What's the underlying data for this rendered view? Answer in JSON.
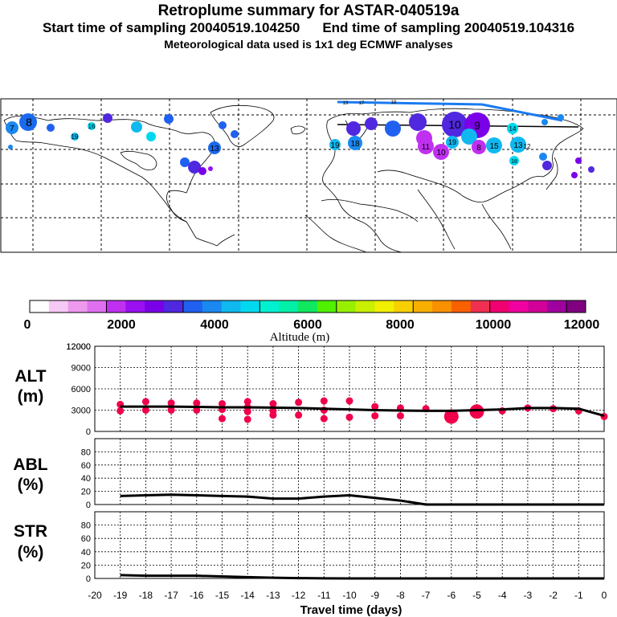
{
  "header": {
    "title": "Retroplume summary for ASTAR-040519a",
    "start_label": "Start time of sampling 20040519.104250",
    "end_label": "End time of sampling 20040519.104316",
    "subtitle": "Meteorological data used is 1x1 deg ECMWF analyses"
  },
  "map": {
    "cluster_labels": [
      "7",
      "8",
      "19",
      "16",
      "13",
      "15",
      "14",
      "12",
      "17",
      "18",
      "9",
      "10",
      "11"
    ]
  },
  "colorbar": {
    "label": "Altitude (m)",
    "ticks": [
      "0",
      "2000",
      "4000",
      "6000",
      "8000",
      "10000",
      "12000"
    ],
    "colors": [
      "#ffffff",
      "#f5c8f5",
      "#ee98ee",
      "#e070f0",
      "#c030f0",
      "#9a10f0",
      "#7a00e8",
      "#5028e0",
      "#2060f0",
      "#1a88f0",
      "#10b8f0",
      "#00d8f0",
      "#00f0d0",
      "#00f0a8",
      "#10e860",
      "#50f000",
      "#98f000",
      "#c8f000",
      "#f0f000",
      "#f8d000",
      "#f8b000",
      "#f89000",
      "#f86000",
      "#f03050",
      "#f00070",
      "#f000a0",
      "#d00098",
      "#a000a0",
      "#800080"
    ]
  },
  "chart_data": [
    {
      "type": "line",
      "name": "ALT",
      "ylabel": "ALT",
      "yunit": "(m)",
      "ylim": [
        0,
        12000
      ],
      "yticks": [
        "0",
        "3000",
        "6000",
        "9000",
        "12000"
      ],
      "x": [
        -19,
        -18,
        -17,
        -16,
        -15,
        -14,
        -13,
        -12,
        -11,
        -10,
        -9,
        -8,
        -7,
        -6,
        -5,
        -4,
        -3,
        -2,
        -1,
        0
      ],
      "values": [
        3500,
        3500,
        3500,
        3450,
        3400,
        3400,
        3350,
        3300,
        3200,
        3100,
        3000,
        2950,
        2900,
        2900,
        3000,
        3100,
        3300,
        3300,
        3200,
        2200
      ],
      "clusters": {
        "x": [
          -19,
          -19,
          -18,
          -18,
          -17,
          -17,
          -16,
          -16,
          -15,
          -15,
          -15,
          -14,
          -14,
          -14,
          -14,
          -13,
          -13,
          -13,
          -12,
          -12,
          -11,
          -11,
          -11,
          -10,
          -10,
          -9,
          -9,
          -8,
          -8,
          -7,
          -6,
          -5,
          -4,
          -3,
          -2,
          -1,
          0
        ],
        "y": [
          3800,
          2900,
          4200,
          3000,
          4000,
          3000,
          4000,
          3000,
          3900,
          3100,
          1800,
          4200,
          3400,
          2800,
          1700,
          3900,
          2900,
          2300,
          4100,
          2300,
          4300,
          3000,
          1800,
          4300,
          2000,
          3500,
          2200,
          3300,
          2200,
          3200,
          2100,
          2800,
          2900,
          3300,
          3200,
          2900,
          2100
        ]
      },
      "line_color": "#000000",
      "marker_color": "#f0004a"
    },
    {
      "type": "line",
      "name": "ABL",
      "ylabel": "ABL",
      "yunit": "(%)",
      "ylim": [
        0,
        100
      ],
      "yticks": [
        "0",
        "20",
        "40",
        "60",
        "80"
      ],
      "x": [
        -19,
        -18,
        -17,
        -16,
        -15,
        -14,
        -13,
        -12,
        -11,
        -10,
        -9,
        -8,
        -7,
        -6,
        -5,
        -4,
        -3,
        -2,
        -1,
        0
      ],
      "values": [
        13,
        14,
        15,
        14,
        13,
        12,
        9,
        9,
        12,
        14,
        10,
        6,
        0,
        0,
        0,
        0,
        0,
        0,
        0,
        0
      ]
    },
    {
      "type": "line",
      "name": "STR",
      "ylabel": "STR",
      "yunit": "(%)",
      "ylim": [
        0,
        100
      ],
      "yticks": [
        "0",
        "20",
        "40",
        "60",
        "80"
      ],
      "x": [
        -19,
        -18,
        -17,
        -16,
        -15,
        -14,
        -13,
        -12,
        -11,
        -10,
        -9,
        -8,
        -7,
        -6,
        -5,
        -4,
        -3,
        -2,
        -1,
        0
      ],
      "values": [
        5,
        4,
        4,
        4,
        3,
        2,
        1,
        0.5,
        0.2,
        0,
        0,
        0,
        0,
        0,
        0,
        0,
        0,
        0,
        0,
        0
      ]
    }
  ],
  "xaxis": {
    "label": "Travel time (days)",
    "ticks": [
      "-20",
      "-19",
      "-18",
      "-17",
      "-16",
      "-15",
      "-14",
      "-13",
      "-12",
      "-11",
      "-10",
      "-9",
      "-8",
      "-7",
      "-6",
      "-5",
      "-4",
      "-3",
      "-2",
      "-1",
      "0"
    ],
    "xlim": [
      -20,
      0
    ]
  }
}
